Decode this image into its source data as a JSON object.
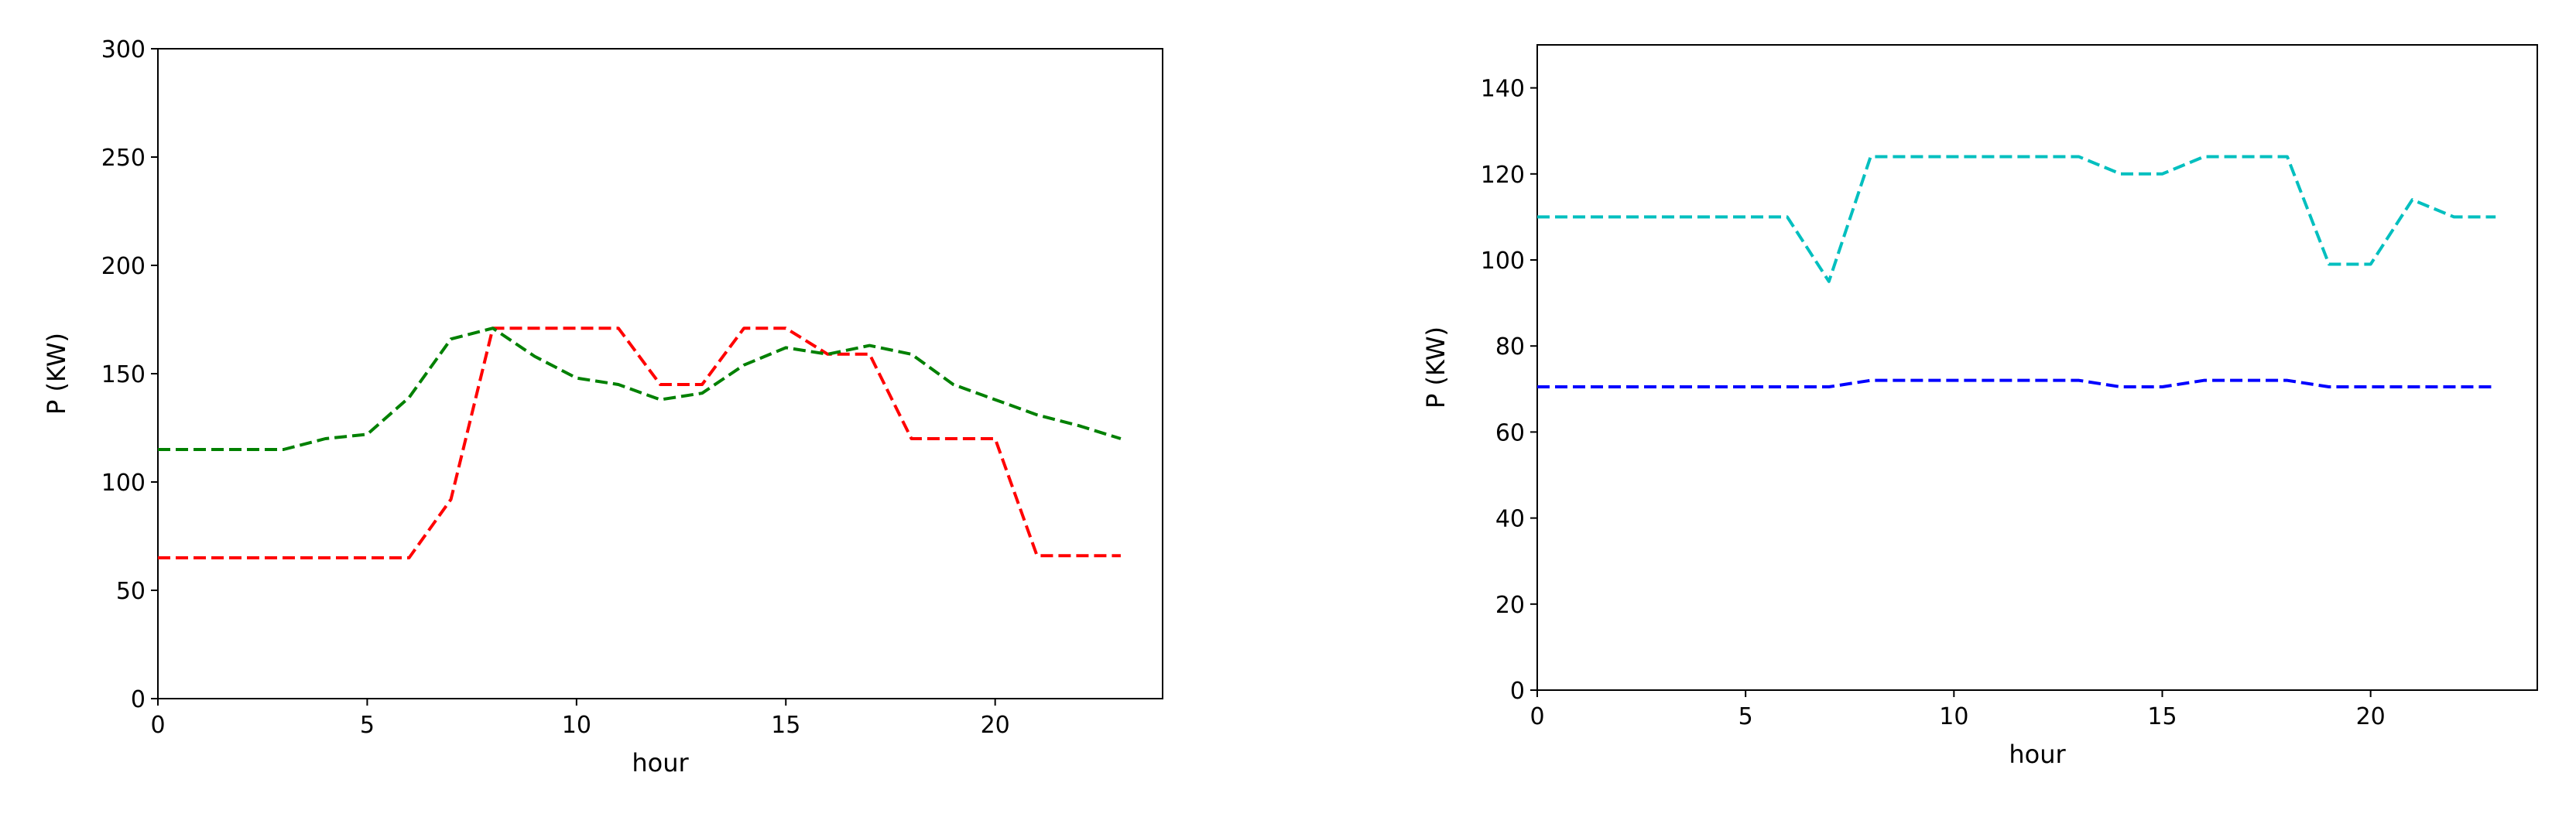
{
  "chart_data": [
    {
      "type": "line",
      "xlabel": "hour",
      "ylabel": "P (KW)",
      "xlim": [
        0,
        24
      ],
      "ylim": [
        0,
        300
      ],
      "xticks": [
        0,
        5,
        10,
        15,
        20
      ],
      "yticks": [
        0,
        50,
        100,
        150,
        200,
        250,
        300
      ],
      "grid": false,
      "x": [
        0,
        1,
        2,
        3,
        4,
        5,
        6,
        7,
        8,
        9,
        10,
        11,
        12,
        13,
        14,
        15,
        16,
        17,
        18,
        19,
        20,
        21,
        22,
        23
      ],
      "series": [
        {
          "color": "#ff0000",
          "linestyle": "dashed",
          "values": [
            65,
            65,
            65,
            65,
            65,
            65,
            65,
            92,
            171,
            171,
            171,
            171,
            145,
            145,
            171,
            171,
            159,
            159,
            120,
            120,
            120,
            66,
            66,
            66
          ]
        },
        {
          "color": "#008000",
          "linestyle": "dashed",
          "values": [
            115,
            115,
            115,
            115,
            120,
            122,
            139,
            166,
            171,
            158,
            148,
            145,
            138,
            141,
            154,
            162,
            159,
            163,
            159,
            145,
            138,
            131,
            126,
            120
          ]
        }
      ]
    },
    {
      "type": "line",
      "xlabel": "hour",
      "ylabel": "P (KW)",
      "xlim": [
        0,
        24
      ],
      "ylim": [
        0,
        150
      ],
      "xticks": [
        0,
        5,
        10,
        15,
        20
      ],
      "yticks": [
        0,
        20,
        40,
        60,
        80,
        100,
        120,
        140
      ],
      "grid": false,
      "x": [
        0,
        1,
        2,
        3,
        4,
        5,
        6,
        7,
        8,
        9,
        10,
        11,
        12,
        13,
        14,
        15,
        16,
        17,
        18,
        19,
        20,
        21,
        22,
        23
      ],
      "series": [
        {
          "color": "#00bfbf",
          "linestyle": "dashed",
          "values": [
            110,
            110,
            110,
            110,
            110,
            110,
            110,
            95,
            124,
            124,
            124,
            124,
            124,
            124,
            120,
            120,
            124,
            124,
            124,
            99,
            99,
            114,
            110,
            110
          ]
        },
        {
          "color": "#0000ff",
          "linestyle": "dashed",
          "values": [
            70.5,
            70.5,
            70.5,
            70.5,
            70.5,
            70.5,
            70.5,
            70.5,
            72,
            72,
            72,
            72,
            72,
            72,
            70.5,
            70.5,
            72,
            72,
            72,
            70.5,
            70.5,
            70.5,
            70.5,
            70.5
          ]
        }
      ]
    }
  ]
}
